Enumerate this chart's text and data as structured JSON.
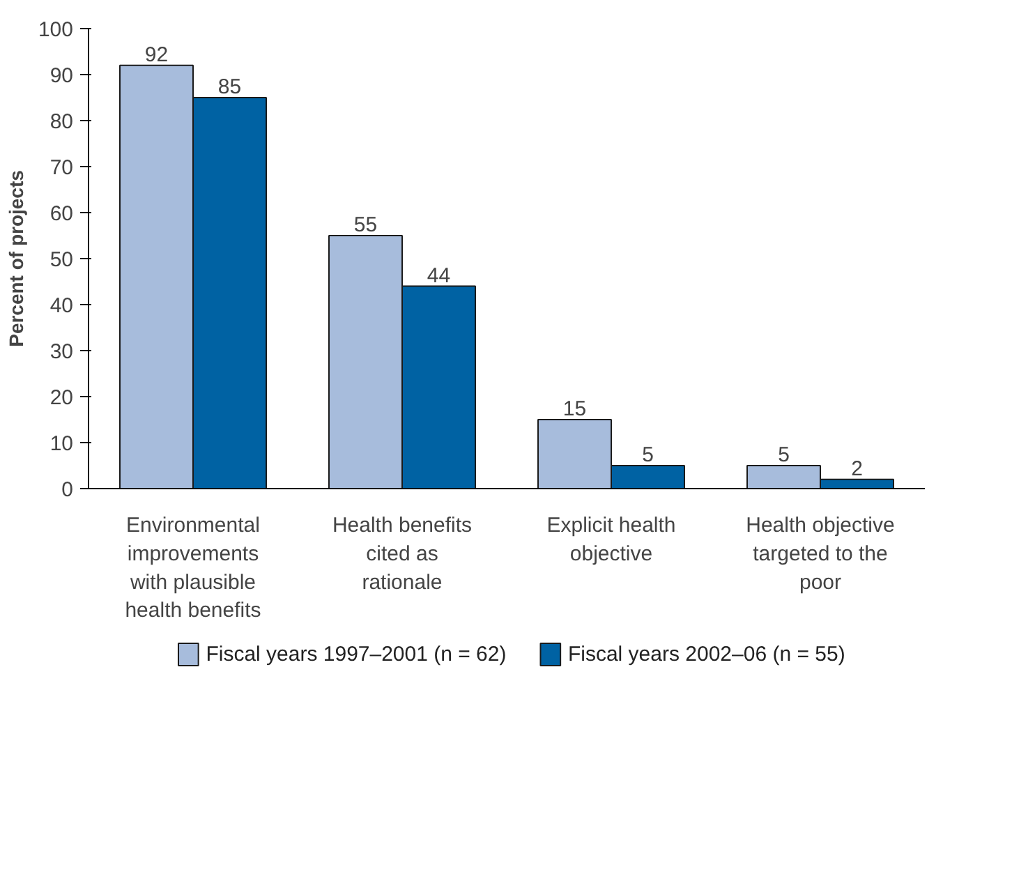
{
  "chart_data": {
    "type": "bar",
    "ylabel": "Percent of projects",
    "categories": [
      "Environmental improvements with plausible health benefits",
      "Health benefits cited as rationale",
      "Explicit health objective",
      "Health objective targeted to the poor"
    ],
    "series": [
      {
        "name": "Fiscal years 1997–2001 (n = 62)",
        "color": "#a7bcdc",
        "values": [
          92,
          55,
          15,
          5
        ]
      },
      {
        "name": "Fiscal years 2002–06 (n = 55)",
        "color": "#0062a3",
        "values": [
          85,
          44,
          5,
          2
        ]
      }
    ],
    "ylim": [
      0,
      100
    ],
    "yticks": [
      0,
      10,
      20,
      30,
      40,
      50,
      60,
      70,
      80,
      90,
      100
    ],
    "data_labels": true,
    "grid": false,
    "legend": "bottom"
  }
}
